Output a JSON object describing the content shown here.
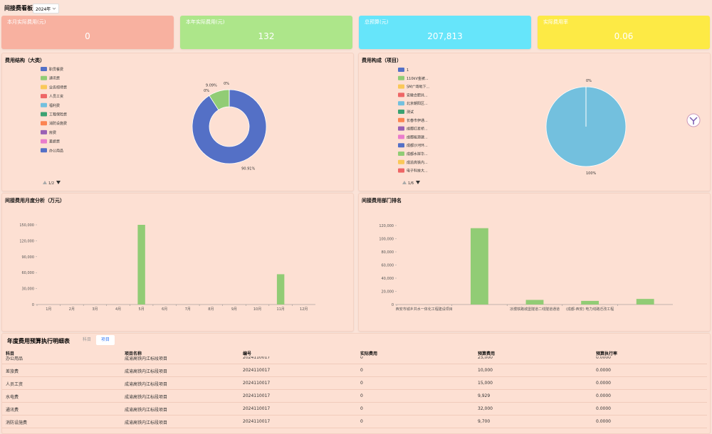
{
  "header": {
    "title": "间接费看板",
    "year": "2024年"
  },
  "kpis": [
    {
      "label": "本月实际费用(元)",
      "value": "0",
      "color": "#f8b1a0"
    },
    {
      "label": "本年实际费用(元)",
      "value": "132",
      "color": "#ade68a"
    },
    {
      "label": "总预算(元)",
      "value": "207,813",
      "color": "#66e5fa"
    },
    {
      "label": "实际费用率",
      "value": "0.06",
      "color": "#fdea45"
    }
  ],
  "chart_data": [
    {
      "type": "pie",
      "title": "费用结构（大类）",
      "donut": true,
      "categories": [
        "职员餐费",
        "通讯费",
        "业务招待费",
        "人员工资",
        "福利费",
        "工程保险费",
        "消防设施费",
        "房费",
        "差旅费",
        "办公用品"
      ],
      "colors": [
        "#5470c6",
        "#91cc75",
        "#fac858",
        "#ee6666",
        "#73c0de",
        "#3ba272",
        "#fc8452",
        "#9a60b4",
        "#ea7ccc",
        "#5470c6"
      ],
      "values": [
        90.91,
        9.09,
        0,
        0,
        0,
        0,
        0,
        0,
        0,
        0
      ],
      "value_labels": [
        "90.91%",
        "9.09%",
        "0%",
        "0%",
        null,
        null,
        null,
        null,
        null,
        null
      ],
      "legend_page": "1/2"
    },
    {
      "type": "pie",
      "title": "费用构成（项目）",
      "donut": false,
      "categories": [
        "1",
        "110kV金被...",
        "SM广场地下...",
        "安徽合肥共...",
        "北京朝阳区...",
        "测试",
        "长春市伊通...",
        "成都红星桥...",
        "成都能源建...",
        "成都沙河环...",
        "成都水岸华...",
        "成渝高铁内...",
        "电子科技大..."
      ],
      "colors": [
        "#5470c6",
        "#91cc75",
        "#fac858",
        "#ee6666",
        "#73c0de",
        "#3ba272",
        "#fc8452",
        "#9a60b4",
        "#ea7ccc",
        "#5470c6",
        "#91cc75",
        "#fac858",
        "#ee6666"
      ],
      "values": [
        0,
        0,
        0,
        0,
        100,
        0,
        0,
        0,
        0,
        0,
        0,
        0,
        0
      ],
      "value_labels": [
        "0%",
        null,
        null,
        null,
        "100%",
        null,
        null,
        null,
        null,
        null,
        null,
        null,
        null
      ],
      "legend_page": "1/6"
    },
    {
      "type": "bar",
      "title": "间接费用月度分析（万元）",
      "categories": [
        "1月",
        "2月",
        "3月",
        "4月",
        "5月",
        "6月",
        "7月",
        "8月",
        "9月",
        "10月",
        "11月",
        "12月"
      ],
      "values": [
        0,
        0,
        0,
        0,
        150000,
        0,
        0,
        0,
        0,
        0,
        57000,
        0
      ],
      "color": "#91cc75",
      "ylim": [
        0,
        150000
      ],
      "yticks": [
        0,
        {
          "value": 30000,
          "label": "30,000"
        },
        {
          "value": 60000,
          "label": "60,000"
        },
        {
          "value": 90000,
          "label": "90,000"
        },
        {
          "value": 120000,
          "label": "120,000"
        },
        {
          "value": 150000,
          "label": "150,000"
        }
      ]
    },
    {
      "type": "bar",
      "title": "间接费用部门排名",
      "categories": [
        "西安市城乡共水一体化工程建设项目",
        null,
        "凉濮铁路城堡隧道二线隧道通道",
        "(成都-西安) 电力线路迁改工程",
        null
      ],
      "values": [
        0,
        116000,
        7000,
        5500,
        8500
      ],
      "color": "#91cc75",
      "ylim": [
        0,
        120000
      ],
      "yticks": [
        0,
        {
          "value": 20000,
          "label": "20,000"
        },
        {
          "value": 40000,
          "label": "40,000"
        },
        {
          "value": 60000,
          "label": "60,000"
        },
        {
          "value": 80000,
          "label": "80,000"
        },
        {
          "value": 100000,
          "label": "100,000"
        },
        {
          "value": 120000,
          "label": "120,000"
        }
      ]
    }
  ],
  "table": {
    "title": "年度费用预算执行明细表",
    "tabs": [
      "科目",
      "项目"
    ],
    "active_tab": 1,
    "columns": [
      "科目",
      "项目名称",
      "编号",
      "实际费用",
      "预算费用",
      "预算执行率"
    ],
    "rows": [
      [
        "办公用品",
        "成渝高铁内江标段项目",
        "2024110017",
        "0",
        "25,000",
        "0.0000"
      ],
      [
        "差旅费",
        "成渝高铁内江标段项目",
        "2024110017",
        "0",
        "10,000",
        "0.0000"
      ],
      [
        "人员工资",
        "成渝高铁内江标段项目",
        "2024110017",
        "0",
        "15,000",
        "0.0000"
      ],
      [
        "水电费",
        "成渝高铁内江标段项目",
        "2024110017",
        "0",
        "9,929",
        "0.0000"
      ],
      [
        "通讯费",
        "成渝高铁内江标段项目",
        "2024110017",
        "0",
        "32,000",
        "0.0000"
      ],
      [
        "消防设施费",
        "成渝高铁内江标段项目",
        "2024110017",
        "0",
        "9,700",
        "0.0000"
      ]
    ]
  }
}
